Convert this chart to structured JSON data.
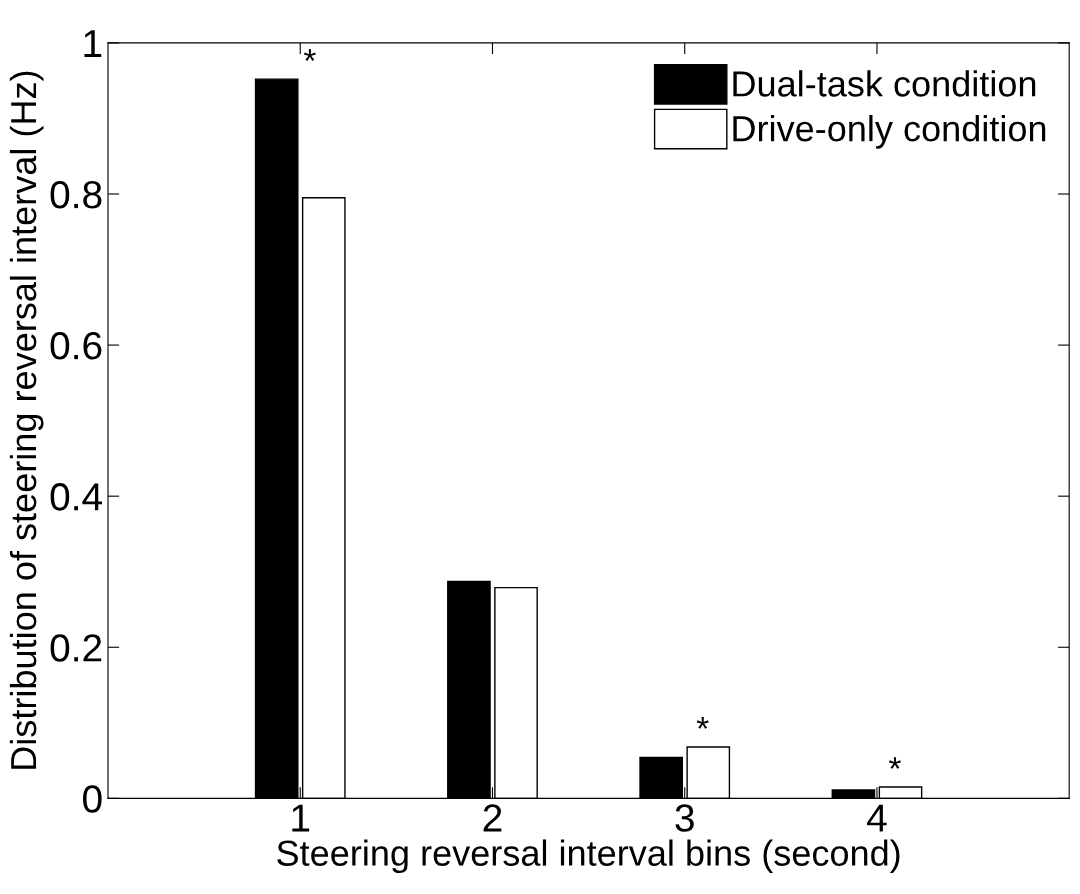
{
  "chart_data": {
    "type": "bar",
    "xlabel": "Steering reversal interval bins (second)",
    "ylabel": "Distribution of steering reversal interval (Hz)",
    "categories": [
      "1",
      "2",
      "3",
      "4"
    ],
    "series": [
      {
        "name": "Dual-task condition",
        "color": "#000000",
        "values": [
          0.952,
          0.287,
          0.054,
          0.011
        ]
      },
      {
        "name": "Drive-only condition",
        "color": "#ffffff",
        "values": [
          0.795,
          0.279,
          0.068,
          0.015
        ]
      }
    ],
    "ylim": [
      0,
      1
    ],
    "yticks": [
      0,
      0.2,
      0.4,
      0.6,
      0.8,
      1
    ],
    "grid": false,
    "legend": "top right",
    "annotations": [
      {
        "text": "*",
        "x": "1",
        "y": 0.952
      },
      {
        "text": "*",
        "x": "3",
        "y": 0.068
      },
      {
        "text": "*",
        "x": "4",
        "y": 0.015
      }
    ]
  }
}
